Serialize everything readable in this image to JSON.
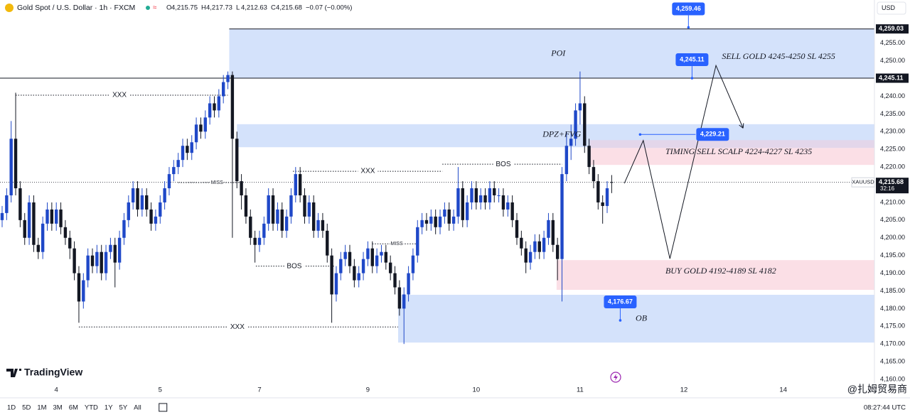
{
  "chart_data": {
    "type": "candlestick",
    "header": {
      "symbol": "Gold Spot / U.S. Dollar · 1h · FXCM",
      "ohlc": [
        {
          "label": "O",
          "value": "4,215.75"
        },
        {
          "label": "H",
          "value": "4,217.73"
        },
        {
          "label": "L",
          "value": "4,212.63"
        },
        {
          "label": "C",
          "value": "4,215.68"
        }
      ],
      "change": "−0.07 (−0.00%)",
      "currency": "USD"
    },
    "up_color": "#1f48c8",
    "down_color": "#131722",
    "open": [
      4205,
      4207,
      4212,
      4228,
      4214,
      4205,
      4200,
      4210,
      4198,
      4196,
      4204,
      4208,
      4204,
      4208,
      4203,
      4200,
      4197,
      4190,
      4182,
      4188,
      4195,
      4192,
      4196,
      4190,
      4196,
      4198,
      4193,
      4200,
      4205,
      4210,
      4214,
      4208,
      4212,
      4208,
      4204,
      4206,
      4210,
      4214,
      4218,
      4220,
      4222,
      4226,
      4224,
      4227,
      4232,
      4230,
      4234,
      4238,
      4236,
      4240,
      4244,
      4246,
      4228,
      4216,
      4212,
      4206,
      4200,
      4198,
      4200,
      4204,
      4212,
      4204,
      4208,
      4202,
      4206,
      4212,
      4218,
      4212,
      4206,
      4210,
      4202,
      4205,
      4202,
      4195,
      4184,
      4190,
      4194,
      4196,
      4192,
      4188,
      4190,
      4194,
      4197,
      4192,
      4195,
      4196,
      4193,
      4190,
      4186,
      4180,
      4184,
      4190,
      4195,
      4203,
      4205,
      4204,
      4206,
      4203,
      4206,
      4208,
      4204,
      4206,
      4214,
      4205,
      4210,
      4214,
      4210,
      4212,
      4210,
      4214,
      4212,
      4212,
      4208,
      4210,
      4205,
      4200,
      4197,
      4193,
      4196,
      4199,
      4196,
      4200,
      4205,
      4198,
      4194,
      4218,
      4226,
      4228,
      4236,
      4238,
      4226,
      4220,
      4216,
      4210,
      4209,
      4215.75
    ],
    "high": [
      4209,
      4214,
      4233,
      4241,
      4216,
      4207,
      4212,
      4212,
      4200,
      4206,
      4210,
      4210,
      4210,
      4210,
      4205,
      4202,
      4199,
      4192,
      4190,
      4197,
      4197,
      4198,
      4198,
      4198,
      4200,
      4200,
      4202,
      4207,
      4212,
      4216,
      4216,
      4214,
      4214,
      4210,
      4208,
      4212,
      4216,
      4220,
      4222,
      4224,
      4228,
      4228,
      4229,
      4234,
      4234,
      4236,
      4240,
      4240,
      4242,
      4246,
      4247,
      4247,
      4230,
      4218,
      4214,
      4208,
      4202,
      4202,
      4206,
      4214,
      4214,
      4210,
      4210,
      4208,
      4214,
      4220,
      4220,
      4214,
      4212,
      4212,
      4207,
      4207,
      4204,
      4197,
      4192,
      4196,
      4198,
      4198,
      4194,
      4192,
      4196,
      4199,
      4199,
      4197,
      4198,
      4198,
      4195,
      4192,
      4188,
      4186,
      4192,
      4197,
      4205,
      4207,
      4207,
      4208,
      4208,
      4208,
      4210,
      4210,
      4208,
      4220,
      4216,
      4212,
      4216,
      4216,
      4214,
      4214,
      4216,
      4216,
      4214,
      4214,
      4212,
      4212,
      4207,
      4202,
      4199,
      4198,
      4201,
      4201,
      4202,
      4207,
      4207,
      4200,
      4220,
      4230,
      4232,
      4238,
      4247,
      4240,
      4228,
      4222,
      4218,
      4212,
      4216,
      4217.73
    ],
    "low": [
      4203,
      4205,
      4210,
      4212,
      4203,
      4198,
      4198,
      4196,
      4194,
      4194,
      4202,
      4202,
      4202,
      4201,
      4198,
      4194,
      4188,
      4176,
      4180,
      4186,
      4190,
      4190,
      4188,
      4188,
      4194,
      4186,
      4191,
      4198,
      4203,
      4208,
      4206,
      4206,
      4206,
      4202,
      4202,
      4204,
      4208,
      4212,
      4216,
      4218,
      4220,
      4222,
      4222,
      4225,
      4228,
      4228,
      4232,
      4234,
      4234,
      4238,
      4242,
      4200,
      4214,
      4208,
      4204,
      4198,
      4193,
      4196,
      4198,
      4202,
      4202,
      4202,
      4200,
      4200,
      4204,
      4210,
      4210,
      4204,
      4204,
      4200,
      4200,
      4200,
      4193,
      4176,
      4182,
      4188,
      4192,
      4190,
      4186,
      4186,
      4188,
      4192,
      4190,
      4190,
      4193,
      4191,
      4188,
      4184,
      4178,
      4170,
      4182,
      4188,
      4193,
      4201,
      4202,
      4202,
      4201,
      4201,
      4204,
      4202,
      4202,
      4204,
      4203,
      4203,
      4208,
      4208,
      4208,
      4208,
      4208,
      4210,
      4210,
      4206,
      4206,
      4203,
      4198,
      4195,
      4190,
      4191,
      4194,
      4194,
      4194,
      4198,
      4196,
      4188,
      4182,
      4216,
      4222,
      4226,
      4232,
      4224,
      4218,
      4214,
      4208,
      4204,
      4207,
      4212.63
    ],
    "close": [
      4207,
      4212,
      4228,
      4214,
      4205,
      4200,
      4210,
      4198,
      4196,
      4204,
      4208,
      4204,
      4208,
      4203,
      4200,
      4197,
      4190,
      4182,
      4188,
      4195,
      4192,
      4196,
      4190,
      4196,
      4198,
      4193,
      4200,
      4205,
      4210,
      4214,
      4208,
      4212,
      4208,
      4204,
      4206,
      4210,
      4214,
      4218,
      4220,
      4222,
      4226,
      4224,
      4227,
      4232,
      4230,
      4234,
      4238,
      4236,
      4240,
      4244,
      4246,
      4228,
      4216,
      4212,
      4206,
      4200,
      4198,
      4200,
      4204,
      4212,
      4204,
      4208,
      4202,
      4206,
      4212,
      4218,
      4212,
      4206,
      4210,
      4202,
      4205,
      4202,
      4195,
      4184,
      4190,
      4194,
      4196,
      4192,
      4188,
      4190,
      4194,
      4197,
      4192,
      4195,
      4196,
      4193,
      4190,
      4186,
      4180,
      4184,
      4190,
      4195,
      4203,
      4205,
      4204,
      4206,
      4203,
      4206,
      4208,
      4204,
      4206,
      4214,
      4205,
      4210,
      4214,
      4210,
      4212,
      4210,
      4214,
      4212,
      4212,
      4208,
      4210,
      4205,
      4200,
      4197,
      4193,
      4196,
      4199,
      4196,
      4200,
      4205,
      4198,
      4194,
      4218,
      4226,
      4228,
      4236,
      4238,
      4226,
      4220,
      4216,
      4210,
      4209,
      4214,
      4215.68
    ],
    "xlim": [
      -0.47,
      193.2
    ],
    "ylim": [
      4158.8,
      4267.2
    ],
    "xticks": [
      {
        "value": 12,
        "label": "4"
      },
      {
        "value": 35,
        "label": "5"
      },
      {
        "value": 57,
        "label": "7"
      },
      {
        "value": 81,
        "label": "9"
      },
      {
        "value": 105,
        "label": "10"
      },
      {
        "value": 128,
        "label": "11"
      },
      {
        "value": 151,
        "label": "12"
      },
      {
        "value": 173,
        "label": "14"
      }
    ],
    "yticks": [
      {
        "value": 4160,
        "label": "4,160.00"
      },
      {
        "value": 4165,
        "label": "4,165.00"
      },
      {
        "value": 4170,
        "label": "4,170.00"
      },
      {
        "value": 4175,
        "label": "4,175.00"
      },
      {
        "value": 4180,
        "label": "4,180.00"
      },
      {
        "value": 4185,
        "label": "4,185.00"
      },
      {
        "value": 4190,
        "label": "4,190.00"
      },
      {
        "value": 4195,
        "label": "4,195.00"
      },
      {
        "value": 4200,
        "label": "4,200.00"
      },
      {
        "value": 4205,
        "label": "4,205.00"
      },
      {
        "value": 4210,
        "label": "4,210.00"
      },
      {
        "value": 4220,
        "label": "4,220.00"
      },
      {
        "value": 4225,
        "label": "4,225.00"
      },
      {
        "value": 4230,
        "label": "4,230.00"
      },
      {
        "value": 4235,
        "label": "4,235.00"
      },
      {
        "value": 4240,
        "label": "4,240.00"
      },
      {
        "value": 4250,
        "label": "4,250.00"
      },
      {
        "value": 4255,
        "label": "4,255.00"
      }
    ],
    "zones": [
      {
        "from": 50.3,
        "low": 4245.11,
        "high": 4259.03,
        "color": "#d4e2fb"
      },
      {
        "from": 52,
        "low": 4225.6,
        "high": 4232.1,
        "color": "#d4e2fb"
      },
      {
        "from": 130.2,
        "low": 4220.6,
        "high": 4225.4,
        "color": "#fbdfe6"
      },
      {
        "from": 130.2,
        "low": 4225.4,
        "high": 4227.6,
        "color": "#e3d6ea"
      },
      {
        "from": 122.8,
        "low": 4185.3,
        "high": 4193.7,
        "color": "#fbdfe6"
      },
      {
        "from": 87.7,
        "low": 4170.4,
        "high": 4183.9,
        "color": "#d4e2fb"
      }
    ],
    "lines": [
      {
        "value": 4259.03,
        "from": 50.3
      },
      {
        "value": 4245.11,
        "from": -0.47
      }
    ],
    "levels": [
      {
        "text": "XXX",
        "value": 4240.3,
        "from": 3,
        "to": 50,
        "at": 26
      },
      {
        "text": "BOS",
        "value": 4192,
        "from": 56.2,
        "to": 73.5,
        "at": 64.7
      },
      {
        "text": "XXX",
        "value": 4218.8,
        "from": 64.4,
        "to": 97.5,
        "at": 81
      },
      {
        "text": "BOS",
        "value": 4220.8,
        "from": 97.5,
        "to": 124,
        "at": 111
      },
      {
        "text": "XXX",
        "value": 4174.8,
        "from": 17,
        "to": 87.7,
        "at": 52.1
      },
      {
        "text": "MISS",
        "value": 4215.6,
        "from": 39,
        "to": 53,
        "at": 47.6
      },
      {
        "text": "MISS",
        "value": 4198.3,
        "from": 82,
        "to": 92,
        "at": 87.4
      }
    ],
    "annotations": [
      {
        "text": "POI",
        "x": 121.6,
        "y": 4252
      },
      {
        "text": "SELL GOLD 4245-4250 SL 4255",
        "x": 159.4,
        "y": 4251.1
      },
      {
        "text": "DPZ+FVG",
        "x": 119.7,
        "y": 4229.1
      },
      {
        "text": "TIMING SELL SCALP 4224-4227 SL 4235",
        "x": 146.9,
        "y": 4224.2
      },
      {
        "text": "BUY GOLD 4192-4189 SL 4182",
        "x": 146.9,
        "y": 4190.5
      },
      {
        "text": "OB",
        "x": 140.3,
        "y": 4177.1
      }
    ],
    "projection": {
      "x": [
        137.8,
        142,
        147.9,
        158.1,
        164.1
      ],
      "y": [
        4215.4,
        4227.5,
        4194.1,
        4248.7,
        4231
      ]
    },
    "callouts": [
      {
        "value": 4259.46,
        "label": "4,259.46",
        "x": 152,
        "placement": "above"
      },
      {
        "value": 4245.11,
        "label": "4,245.11",
        "x": 152.8,
        "placement": "above"
      },
      {
        "value": 4229.21,
        "label": "4,229.21",
        "x": 141.3,
        "placement": "right"
      },
      {
        "value": 4176.67,
        "label": "4,176.67",
        "x": 136.9,
        "placement": "above"
      }
    ],
    "axis_tags": [
      {
        "value": 4259.03,
        "label": "4,259.03"
      },
      {
        "value": 4245.11,
        "label": "4,245.11"
      },
      {
        "value": 4215.68,
        "label": "4,215.68",
        "timer": "32:16",
        "symbol": "XAUUSD"
      }
    ],
    "brand": "TradingView",
    "watermark": "@扎姆贸易商",
    "ranges": [
      "1D",
      "5D",
      "1M",
      "3M",
      "6M",
      "YTD",
      "1Y",
      "5Y",
      "All"
    ],
    "clock": "08:27:44 UTC"
  }
}
